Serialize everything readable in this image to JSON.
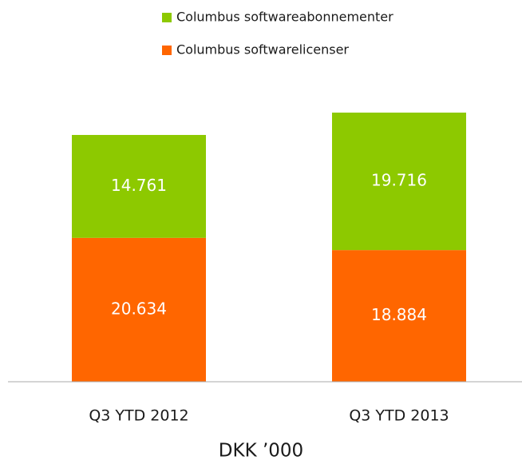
{
  "chart_data": {
    "type": "stacked_bar",
    "categories": [
      "Q3 YTD 2012",
      "Q3 YTD 2013"
    ],
    "x_label": "DKK ’000",
    "series": [
      {
        "name": "Columbus softwarelicenser",
        "color": "#ff6600",
        "values": [
          20634,
          18884
        ],
        "value_labels": [
          "20.634",
          "18.884"
        ]
      },
      {
        "name": "Columbus softwareabonnementer",
        "color": "#8dc900",
        "values": [
          14761,
          19716
        ],
        "value_labels": [
          "14.761",
          "19.716"
        ]
      }
    ]
  }
}
